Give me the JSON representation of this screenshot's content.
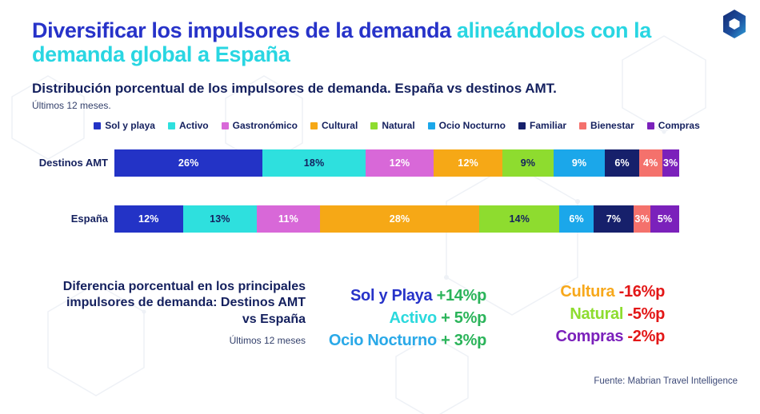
{
  "slide": {
    "title_part1": "Diversificar los impulsores de la demanda ",
    "title_part2": "alineándolos con la demanda global a España",
    "subtitle": "Distribución porcentual de los impulsores de demanda. España vs destinos AMT.",
    "subtitle_note": "Últimos 12 meses.",
    "footer_source": "Fuente: Mabrian Travel Intelligence",
    "logo_name": "mabrian-logo"
  },
  "palette": {
    "title_blue": "#2733C9",
    "title_cyan": "#29D6E2",
    "heading_navy": "#14205E",
    "note_navy": "#33406B",
    "gain_green": "#2BB45A",
    "loss_red": "#E31717"
  },
  "chart_data": {
    "type": "bar",
    "variant": "horizontal-stacked-100",
    "unit": "%",
    "legend_position": "top",
    "value_labels": "inside",
    "categories": [
      "Destinos AMT",
      "España"
    ],
    "series": [
      {
        "name": "Sol y playa",
        "color": "#2333C6",
        "text_color": "#FFFFFF",
        "values": [
          26,
          12
        ]
      },
      {
        "name": "Activo",
        "color": "#2EE0DE",
        "text_color": "#14205E",
        "values": [
          18,
          13
        ]
      },
      {
        "name": "Gastronómico",
        "color": "#D868D8",
        "text_color": "#FFFFFF",
        "values": [
          12,
          11
        ]
      },
      {
        "name": "Cultural",
        "color": "#F6A816",
        "text_color": "#FFFFFF",
        "values": [
          12,
          28
        ]
      },
      {
        "name": "Natural",
        "color": "#8EDC2F",
        "text_color": "#14205E",
        "values": [
          9,
          14
        ]
      },
      {
        "name": "Ocio Nocturno",
        "color": "#1BA7EA",
        "text_color": "#FFFFFF",
        "values": [
          9,
          6
        ]
      },
      {
        "name": "Familiar",
        "color": "#16206B",
        "text_color": "#FFFFFF",
        "values": [
          6,
          7
        ]
      },
      {
        "name": "Bienestar",
        "color": "#F4716C",
        "text_color": "#FFFFFF",
        "values": [
          4,
          3
        ]
      },
      {
        "name": "Compras",
        "color": "#7B21BB",
        "text_color": "#FFFFFF",
        "values": [
          3,
          5
        ]
      }
    ]
  },
  "diff_block": {
    "heading": "Diferencia porcentual en los principales impulsores de demanda: Destinos AMT vs España",
    "note": "Últimos 12 meses",
    "gains": [
      {
        "label": "Sol y Playa",
        "value": "+14%p",
        "label_color": "#2733C9"
      },
      {
        "label": "Activo",
        "value": "+ 5%p",
        "label_color": "#2BD9DD"
      },
      {
        "label": "Ocio Nocturno",
        "value": "+ 3%p",
        "label_color": "#2AA9E8"
      }
    ],
    "losses": [
      {
        "label": "Cultura",
        "value": "-16%p",
        "label_color": "#F7A81B"
      },
      {
        "label": "Natural",
        "value": "-5%p",
        "label_color": "#8EDC2F"
      },
      {
        "label": "Compras",
        "value": "-2%p",
        "label_color": "#7B21BB"
      }
    ]
  }
}
